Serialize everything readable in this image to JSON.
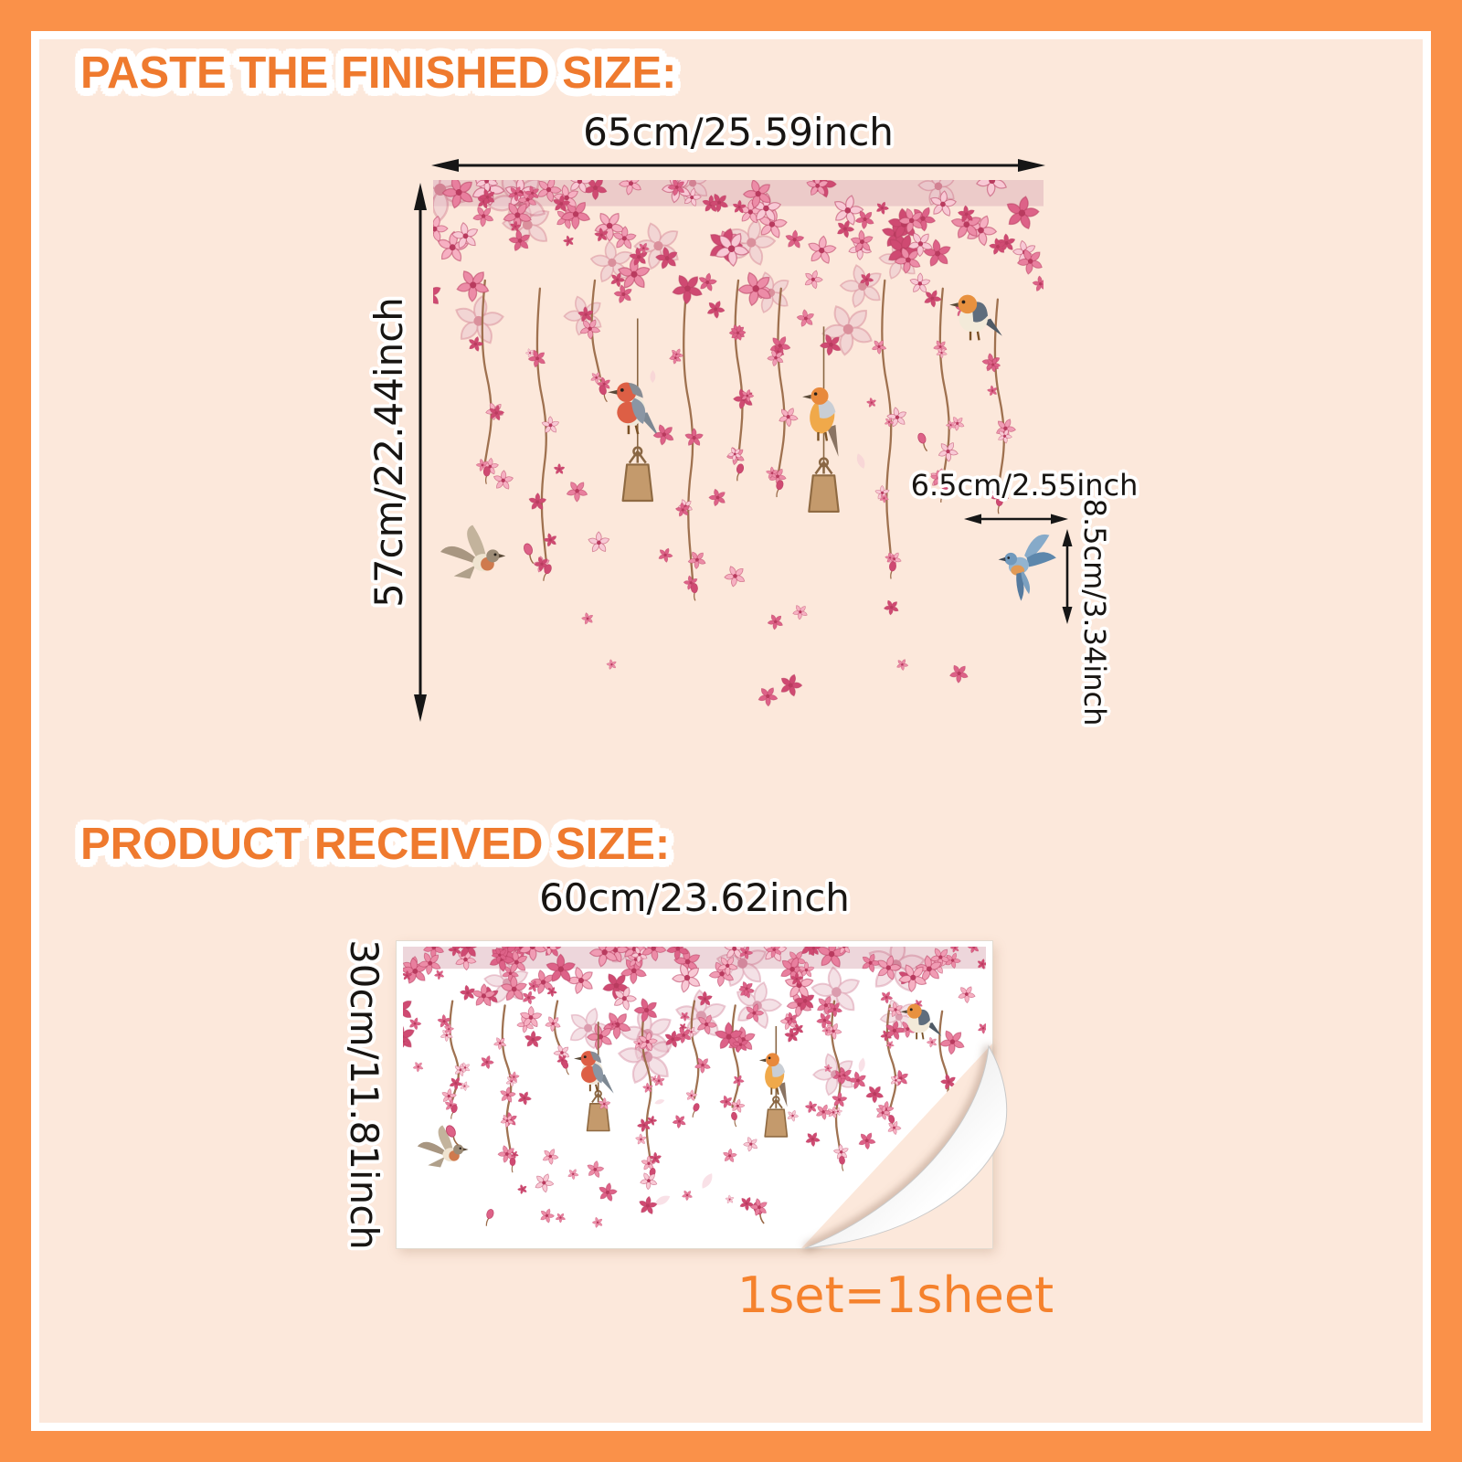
{
  "theme": {
    "border_color": "#FA9149",
    "background_color": "#FCE8DB",
    "accent_text_color": "#EF7A2E",
    "dimension_text_color": "#181512"
  },
  "finished": {
    "heading": "PASTE THE FINISHED SIZE:",
    "width_label": "65cm/25.59inch",
    "height_label": "57cm/22.44inch",
    "bird_width_label": "6.5cm/2.55inch",
    "bird_height_label": "8.5cm/3.34inch"
  },
  "received": {
    "heading": "PRODUCT RECEIVED SIZE:",
    "width_label": "60cm/23.62inch",
    "height_label": "30cm/11.81inch",
    "set_note": "1set=1sheet"
  }
}
